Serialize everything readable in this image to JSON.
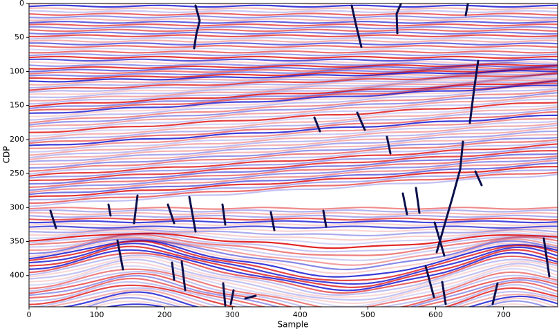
{
  "chart_data": {
    "type": "image",
    "x_label": "Sample",
    "y_label": "CDP",
    "xlim": [
      0,
      780
    ],
    "xticks": [
      0,
      100,
      200,
      300,
      400,
      500,
      600,
      700
    ],
    "ylim": [
      0,
      446
    ],
    "y_inverted": true,
    "yticks": [
      0,
      50,
      100,
      150,
      200,
      250,
      300,
      350,
      400
    ],
    "colormap": [
      "#0000cc",
      "#ffffff",
      "#dd0000"
    ]
  }
}
